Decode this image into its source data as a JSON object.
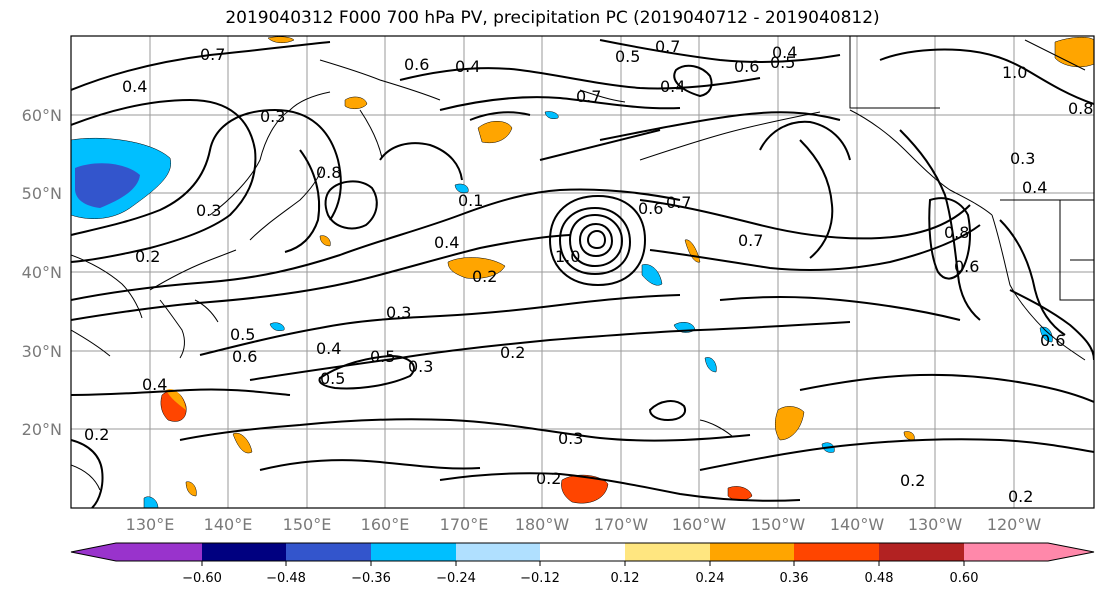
{
  "title": "2019040312 F000 700 hPa PV, precipitation PC (2019040712 - 2019040812)",
  "lat_labels": [
    "60°N",
    "50°N",
    "40°N",
    "30°N",
    "20°N"
  ],
  "lon_labels": [
    "130°E",
    "140°E",
    "150°E",
    "160°E",
    "170°E",
    "180°W",
    "170°W",
    "160°W",
    "150°W",
    "140°W",
    "130°W",
    "120°W"
  ],
  "colorbar": {
    "ticks": [
      "−0.60",
      "−0.48",
      "−0.36",
      "−0.24",
      "−0.12",
      "0.12",
      "0.24",
      "0.36",
      "0.48",
      "0.60"
    ],
    "colors": [
      "#9933cc",
      "#000080",
      "#3355cc",
      "#00bfff",
      "#b0e0ff",
      "#ffffff",
      "#ffe680",
      "#ffa500",
      "#ff4500",
      "#b22222",
      "#ff88aa"
    ]
  },
  "contour_labels": [
    {
      "text": "0.7"
    },
    {
      "text": "0.4"
    },
    {
      "text": "0.6"
    },
    {
      "text": "0.4"
    },
    {
      "text": "0.5"
    },
    {
      "text": "0.7"
    },
    {
      "text": "0.6"
    },
    {
      "text": "0.5"
    },
    {
      "text": "0.4"
    },
    {
      "text": "0.7"
    },
    {
      "text": "0.4"
    },
    {
      "text": "0.3"
    },
    {
      "text": "0.8"
    },
    {
      "text": "0.3"
    },
    {
      "text": "0.2"
    },
    {
      "text": "0.1"
    },
    {
      "text": "0.4"
    },
    {
      "text": "0.6"
    },
    {
      "text": "0.7"
    },
    {
      "text": "1.0"
    },
    {
      "text": "0.7"
    },
    {
      "text": "0.2"
    },
    {
      "text": "0.8"
    },
    {
      "text": "0.6"
    },
    {
      "text": "0.4"
    },
    {
      "text": "0.3"
    },
    {
      "text": "0.5"
    },
    {
      "text": "0.6"
    },
    {
      "text": "0.4"
    },
    {
      "text": "0.5"
    },
    {
      "text": "0.3"
    },
    {
      "text": "0.2"
    },
    {
      "text": "0.5"
    },
    {
      "text": "0.4"
    },
    {
      "text": "0.2"
    },
    {
      "text": "0.3"
    },
    {
      "text": "0.2"
    },
    {
      "text": "0.2"
    },
    {
      "text": "0.2"
    },
    {
      "text": "0.6"
    },
    {
      "text": "1.0"
    },
    {
      "text": "0.8"
    },
    {
      "text": "0.3"
    }
  ]
}
